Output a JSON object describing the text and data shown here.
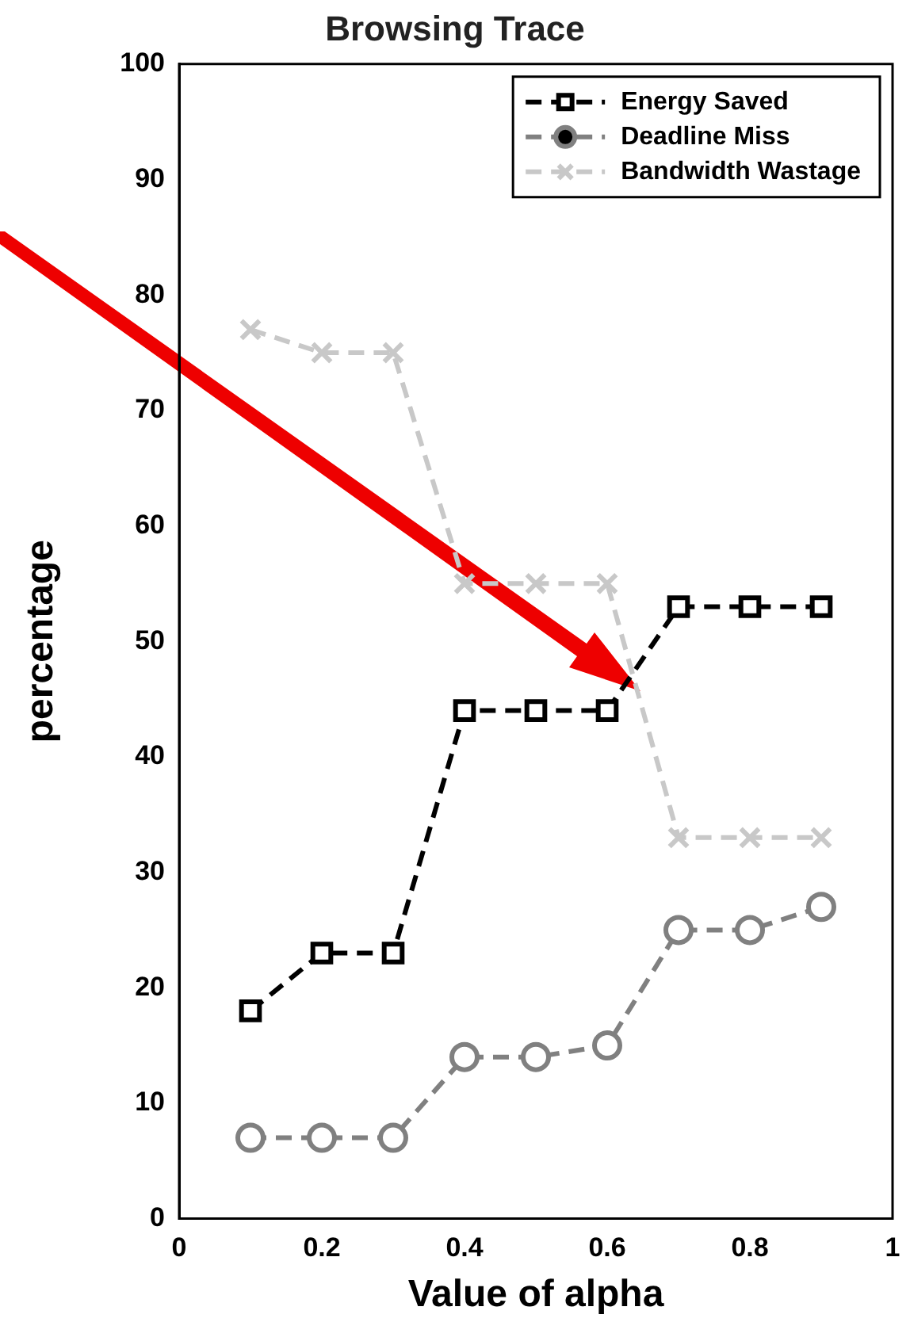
{
  "chart_data": {
    "type": "line",
    "title": "Browsing Trace",
    "xlabel": "Value of alpha",
    "ylabel": "percentage",
    "x": [
      0.1,
      0.2,
      0.3,
      0.4,
      0.5,
      0.6,
      0.7,
      0.8,
      0.9
    ],
    "series": [
      {
        "name": "Energy Saved",
        "color": "#000000",
        "marker": "square",
        "values": [
          18,
          23,
          23,
          44,
          44,
          44,
          53,
          53,
          53
        ]
      },
      {
        "name": "Deadline Miss",
        "color": "#808080",
        "marker": "circle",
        "values": [
          7,
          7,
          7,
          14,
          14,
          15,
          25,
          25,
          27
        ]
      },
      {
        "name": "Bandwidth Wastage",
        "color": "#c8c8c8",
        "marker": "cross",
        "values": [
          77,
          75,
          75,
          55,
          55,
          55,
          33,
          33,
          33
        ]
      }
    ],
    "xlim": [
      0,
      1
    ],
    "xticks": [
      0,
      0.2,
      0.4,
      0.6,
      0.8,
      1
    ],
    "ylim": [
      0,
      100
    ],
    "yticks": [
      0,
      10,
      20,
      30,
      40,
      50,
      60,
      70,
      80,
      90,
      100
    ],
    "grid": false,
    "legend": "top right",
    "line_style": "dashed"
  }
}
